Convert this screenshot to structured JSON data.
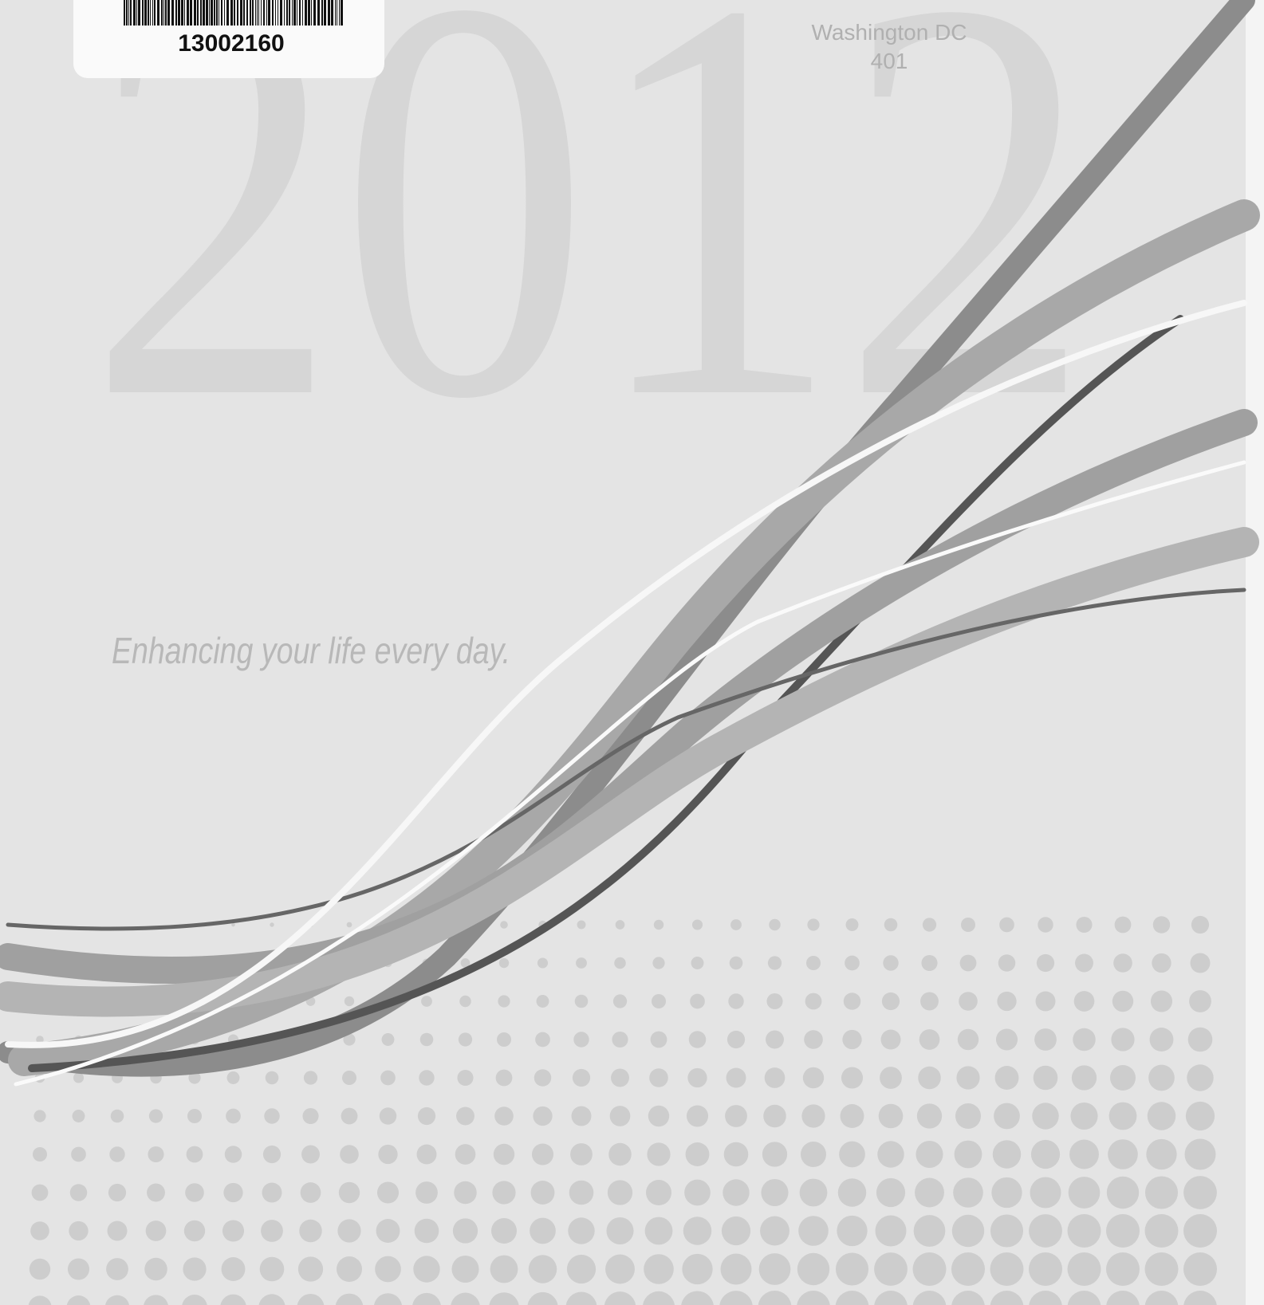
{
  "label": {
    "barcode_number": "13002160"
  },
  "header": {
    "location": "Washington DC",
    "code": "401"
  },
  "cover": {
    "year": "2012",
    "tagline": "Enhancing your life every day."
  }
}
